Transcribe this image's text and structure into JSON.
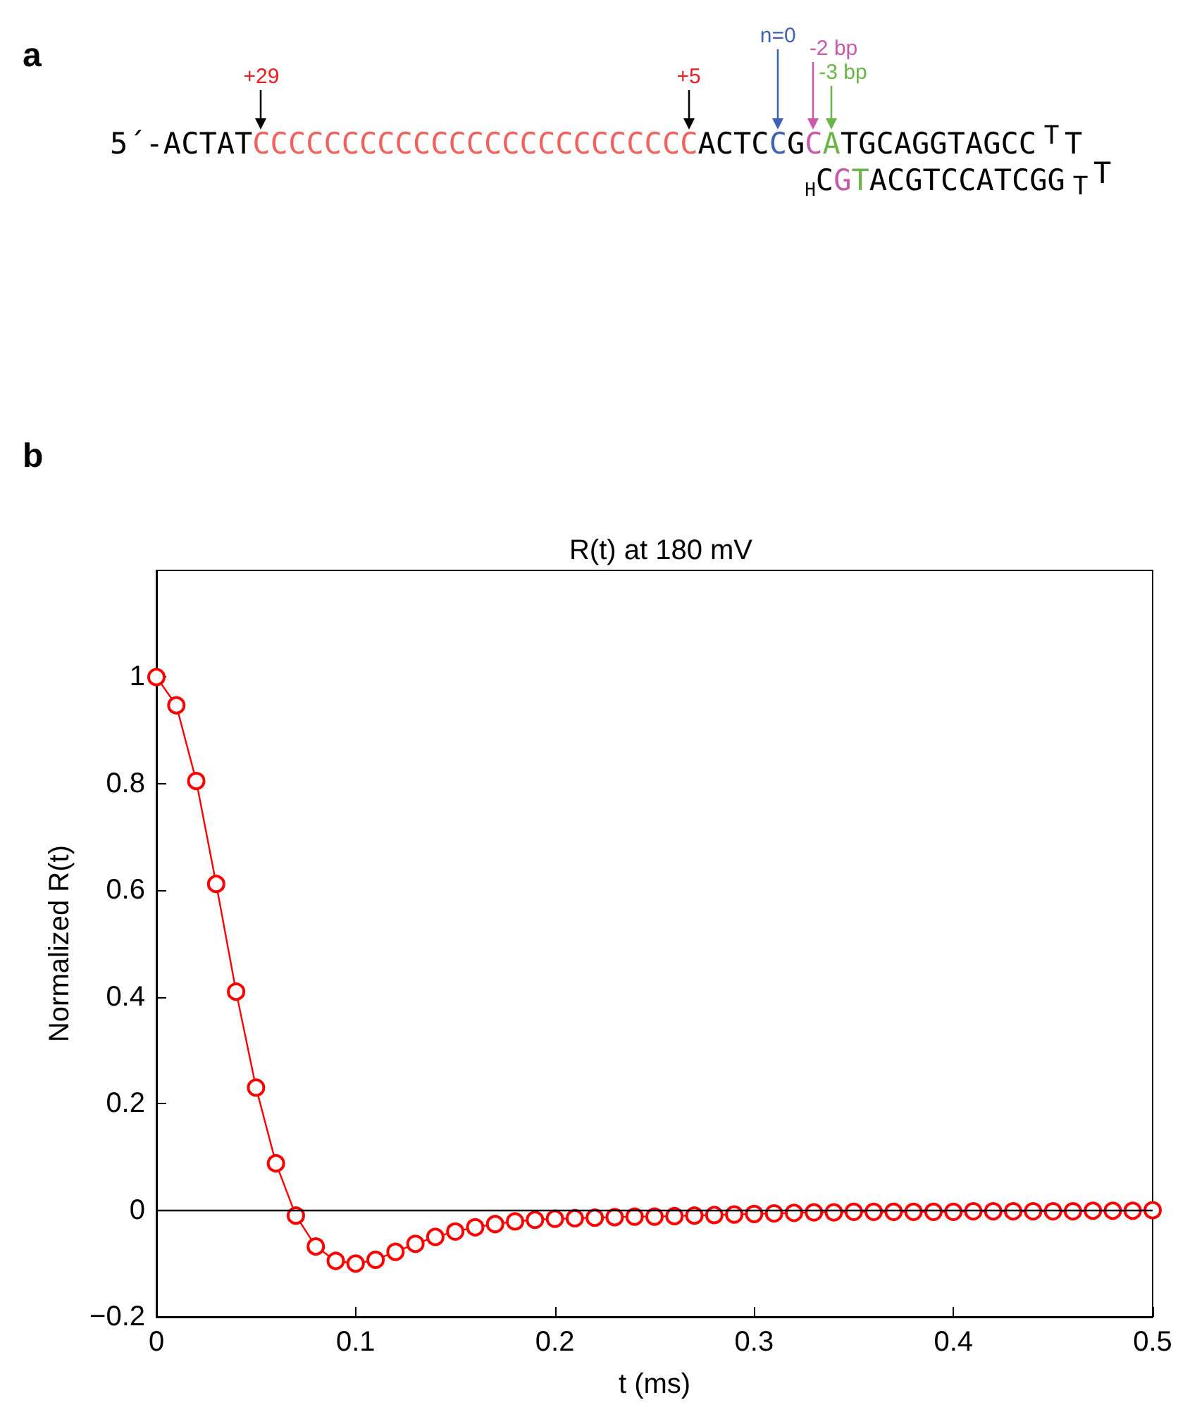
{
  "chart_data": [
    {
      "type": "other",
      "title": "a",
      "annotations": [
        "5´-ACTAT",
        "CCCCCCCCCCCCCCCCCCCCCCCCC",
        "ACTC",
        "C",
        "G",
        "C",
        "A",
        "TGCAGGTAGCC",
        "T",
        "T",
        "H",
        "C",
        "G",
        "T",
        "ACGTCCATCGG",
        "T",
        "T",
        "+29",
        "+5",
        "n=0",
        "-2 bp",
        "-3 bp"
      ],
      "colors": [
        "#000000",
        "#f0625c",
        "#000000",
        "#3f62b4",
        "#000000",
        "#c95aab",
        "#6cb44a",
        "#000000",
        "#000000",
        "#000000",
        "#000000",
        "#000000",
        "#c95aab",
        "#6cb44a",
        "#000000",
        "#000000",
        "#000000",
        "#ee1c1c",
        "#ee1c1c",
        "#3f62b4",
        "#c95aab",
        "#6cb44a"
      ]
    },
    {
      "type": "line",
      "title": "R(t) at 180 mV",
      "xlabel": "t (ms)",
      "ylabel": "Normalized R(t)",
      "annotations": [
        "b"
      ],
      "x": [
        0,
        0.01,
        0.02,
        0.03,
        0.04,
        0.05,
        0.06,
        0.07,
        0.08,
        0.09,
        0.1,
        0.11,
        0.12,
        0.13,
        0.14,
        0.15,
        0.16,
        0.17,
        0.18,
        0.19,
        0.2,
        0.21,
        0.22,
        0.23,
        0.24,
        0.25,
        0.26,
        0.27,
        0.28,
        0.29,
        0.3,
        0.31,
        0.32,
        0.33,
        0.34,
        0.35,
        0.36,
        0.37,
        0.38,
        0.39,
        0.4,
        0.41,
        0.42,
        0.43,
        0.44,
        0.45,
        0.46,
        0.47,
        0.48,
        0.49,
        0.5
      ],
      "series": [
        {
          "color": "#ff0000",
          "values": [
            1,
            0.947,
            0.805,
            0.612,
            0.41,
            0.23,
            0.088,
            -0.01,
            -0.068,
            -0.095,
            -0.1,
            -0.093,
            -0.078,
            -0.063,
            -0.05,
            -0.04,
            -0.032,
            -0.026,
            -0.021,
            -0.018,
            -0.016,
            -0.015,
            -0.014,
            -0.013,
            -0.012,
            -0.012,
            -0.011,
            -0.01,
            -0.009,
            -0.008,
            -0.007,
            -0.006,
            -0.005,
            -0.004,
            -0.004,
            -0.003,
            -0.003,
            -0.003,
            -0.003,
            -0.003,
            -0.003,
            -0.002,
            -0.002,
            -0.002,
            -0.002,
            -0.002,
            -0.002,
            -0.001,
            -0.001,
            -0.001,
            0
          ]
        }
      ],
      "xlim": [
        0,
        0.5
      ],
      "xticks": [
        0,
        0.1,
        0.2,
        0.3,
        0.4,
        0.5
      ],
      "ylim": [
        -0.2,
        1.2
      ],
      "yticks": [
        {
          "value": -0.2,
          "label": "−0.2"
        },
        0,
        0.2,
        0.4,
        0.6,
        0.8,
        1
      ],
      "ref_lines": [
        {
          "axis": "y",
          "value": 0,
          "color": "#000000"
        }
      ],
      "marker": "circle",
      "line_style": "solid"
    }
  ]
}
